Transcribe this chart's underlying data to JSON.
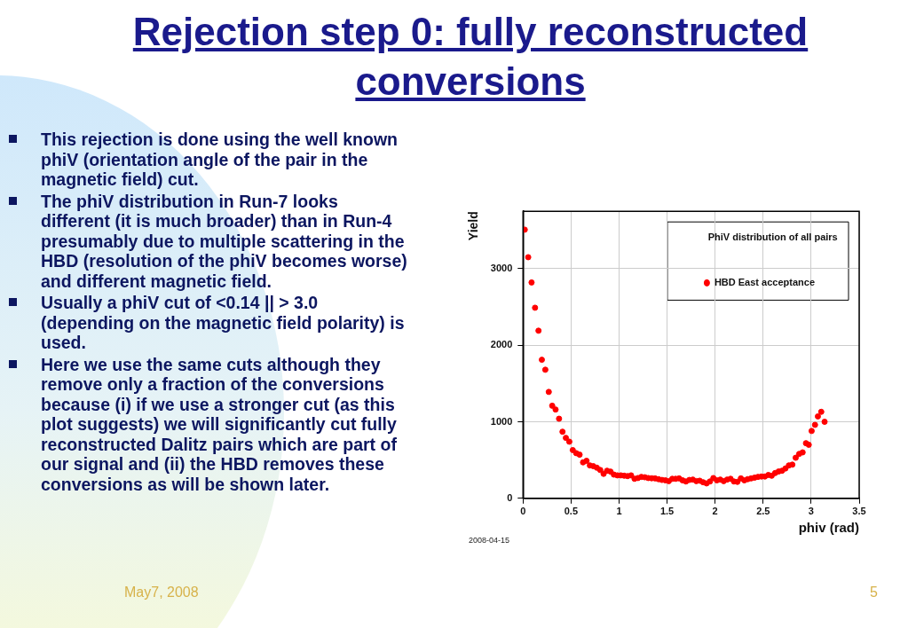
{
  "chart_data": {
    "type": "scatter",
    "title": "Rejection step 0: fully reconstructed conversions",
    "xlabel": "phiv (rad)",
    "ylabel": "Yield",
    "legend_title": "PhiV distribution of all pairs",
    "xlim": [
      0,
      3.5
    ],
    "xticks": [
      0,
      0.5,
      1,
      1.5,
      2,
      2.5,
      3,
      3.5
    ],
    "ylim": [
      0,
      3750
    ],
    "yticks": [
      0,
      1000,
      2000,
      3000
    ],
    "grid": true,
    "legend": "top right",
    "marker": "circle",
    "series": [
      {
        "name": "HBD East acceptance",
        "color": "#ff0000",
        "x": [
          0.018,
          0.054,
          0.089,
          0.125,
          0.161,
          0.196,
          0.232,
          0.268,
          0.304,
          0.339,
          0.375,
          0.411,
          0.446,
          0.482,
          0.518,
          0.554,
          0.589,
          0.625,
          0.661,
          0.696,
          0.732,
          0.768,
          0.804,
          0.839,
          0.875,
          0.911,
          0.946,
          0.982,
          1.018,
          1.054,
          1.089,
          1.125,
          1.161,
          1.196,
          1.232,
          1.268,
          1.304,
          1.339,
          1.375,
          1.411,
          1.446,
          1.482,
          1.518,
          1.554,
          1.589,
          1.625,
          1.661,
          1.696,
          1.732,
          1.768,
          1.804,
          1.839,
          1.875,
          1.911,
          1.946,
          1.982,
          2.018,
          2.054,
          2.089,
          2.125,
          2.161,
          2.196,
          2.232,
          2.268,
          2.304,
          2.339,
          2.375,
          2.411,
          2.446,
          2.482,
          2.518,
          2.554,
          2.589,
          2.625,
          2.661,
          2.696,
          2.732,
          2.768,
          2.804,
          2.839,
          2.875,
          2.911,
          2.946,
          2.975,
          3.005,
          3.04,
          3.07,
          3.105,
          3.14
        ],
        "values": [
          3510,
          3150,
          2820,
          2490,
          2190,
          1810,
          1680,
          1390,
          1210,
          1160,
          1040,
          870,
          790,
          740,
          630,
          590,
          570,
          470,
          490,
          430,
          420,
          400,
          370,
          320,
          360,
          349,
          310,
          300,
          300,
          295,
          290,
          300,
          255,
          265,
          280,
          275,
          265,
          262,
          260,
          250,
          240,
          235,
          225,
          255,
          255,
          260,
          235,
          220,
          240,
          245,
          225,
          230,
          210,
          195,
          220,
          265,
          235,
          245,
          225,
          245,
          255,
          220,
          215,
          260,
          235,
          250,
          260,
          270,
          280,
          285,
          285,
          305,
          295,
          330,
          350,
          360,
          390,
          430,
          440,
          530,
          580,
          600,
          720,
          700,
          880,
          960,
          1070,
          1130,
          1000
        ]
      }
    ],
    "annotations": [
      "This rejection is done using the well known phiV (orientation angle of the pair in the magnetic field) cut.",
      "The phiV distribution in Run-7 looks different (it is much broader) than in Run-4 presumably due to multiple scattering in the HBD (resolution of the phiV becomes worse) and different magnetic field.",
      "Usually a phiV cut of <0.14 || > 3.0 (depending on the magnetic field polarity) is used.",
      "Here we use the same cuts although they remove only a fraction of the conversions because (i) if we use a stronger cut (as this plot suggests) we will significantly cut fully reconstructed Dalitz pairs which are part of our signal and (ii) the HBD removes these conversions as will be shown later.",
      "2008-04-15",
      "May7, 2008",
      "5"
    ]
  }
}
